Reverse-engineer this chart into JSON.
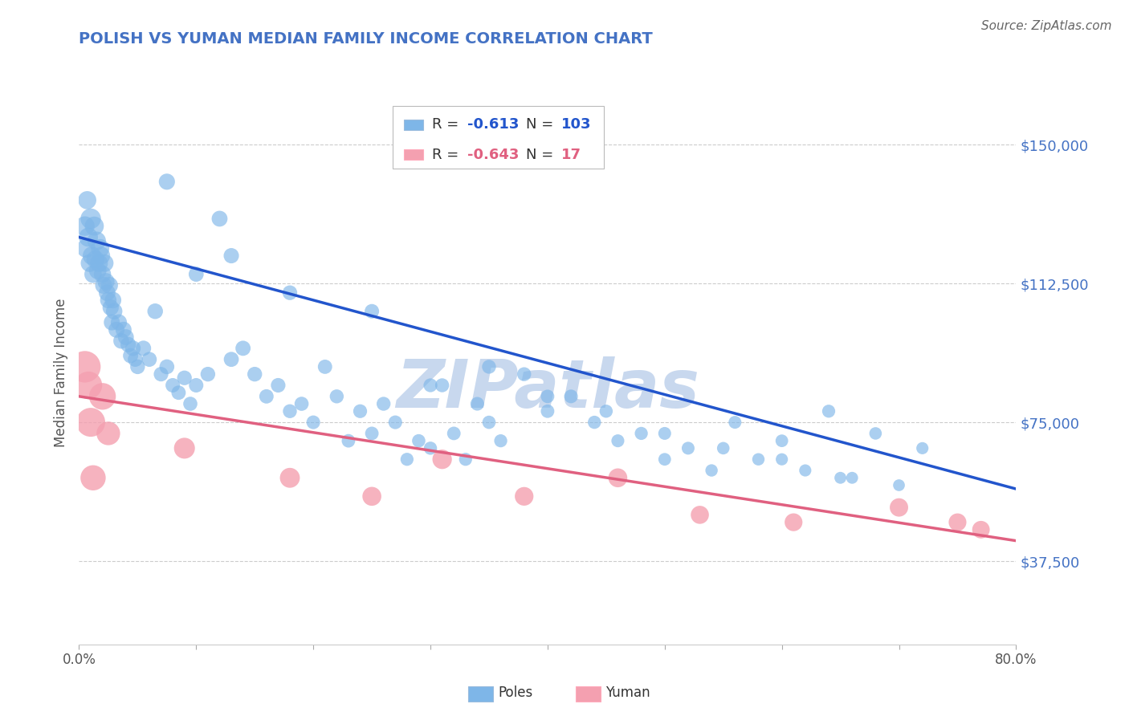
{
  "title": "POLISH VS YUMAN MEDIAN FAMILY INCOME CORRELATION CHART",
  "source": "Source: ZipAtlas.com",
  "ylabel": "Median Family Income",
  "xlim": [
    0.0,
    0.8
  ],
  "ylim": [
    15000,
    162000
  ],
  "yticks": [
    37500,
    75000,
    112500,
    150000
  ],
  "ytick_labels": [
    "$37,500",
    "$75,000",
    "$112,500",
    "$150,000"
  ],
  "xticks": [
    0.0,
    0.1,
    0.2,
    0.3,
    0.4,
    0.5,
    0.6,
    0.7,
    0.8
  ],
  "poles_color": "#7EB6E8",
  "yuman_color": "#F4A0B0",
  "line_blue": "#2255CC",
  "line_pink": "#E06080",
  "legend_R_poles": "-0.613",
  "legend_N_poles": "103",
  "legend_R_yuman": "-0.643",
  "legend_N_yuman": "17",
  "watermark": "ZIPatlas",
  "watermark_color": "#C8D8EE",
  "title_color": "#4472C4",
  "right_axis_color": "#4472C4",
  "grid_color": "#CCCCCC",
  "background_color": "#FFFFFF",
  "poles_line_x0": 0.0,
  "poles_line_y0": 125000,
  "poles_line_x1": 0.8,
  "poles_line_y1": 57000,
  "yuman_line_x0": 0.0,
  "yuman_line_y0": 82000,
  "yuman_line_x1": 0.8,
  "yuman_line_y1": 43000,
  "poles_x": [
    0.005,
    0.006,
    0.007,
    0.008,
    0.009,
    0.01,
    0.011,
    0.012,
    0.013,
    0.014,
    0.015,
    0.016,
    0.017,
    0.018,
    0.019,
    0.02,
    0.021,
    0.022,
    0.023,
    0.024,
    0.025,
    0.026,
    0.027,
    0.028,
    0.029,
    0.03,
    0.032,
    0.034,
    0.036,
    0.038,
    0.04,
    0.042,
    0.044,
    0.046,
    0.048,
    0.05,
    0.055,
    0.06,
    0.065,
    0.07,
    0.075,
    0.08,
    0.085,
    0.09,
    0.095,
    0.1,
    0.11,
    0.12,
    0.13,
    0.14,
    0.15,
    0.16,
    0.17,
    0.18,
    0.19,
    0.2,
    0.21,
    0.22,
    0.23,
    0.24,
    0.25,
    0.26,
    0.27,
    0.28,
    0.29,
    0.3,
    0.31,
    0.32,
    0.33,
    0.34,
    0.35,
    0.36,
    0.38,
    0.4,
    0.42,
    0.44,
    0.46,
    0.48,
    0.5,
    0.52,
    0.54,
    0.56,
    0.58,
    0.6,
    0.62,
    0.64,
    0.66,
    0.68,
    0.7,
    0.72,
    0.075,
    0.1,
    0.13,
    0.18,
    0.25,
    0.3,
    0.35,
    0.4,
    0.45,
    0.5,
    0.55,
    0.6,
    0.65
  ],
  "poles_y": [
    128000,
    122000,
    135000,
    125000,
    118000,
    130000,
    120000,
    115000,
    128000,
    119000,
    124000,
    116000,
    118000,
    122000,
    120000,
    115000,
    112000,
    118000,
    113000,
    110000,
    108000,
    112000,
    106000,
    102000,
    108000,
    105000,
    100000,
    102000,
    97000,
    100000,
    98000,
    96000,
    93000,
    95000,
    92000,
    90000,
    95000,
    92000,
    105000,
    88000,
    90000,
    85000,
    83000,
    87000,
    80000,
    85000,
    88000,
    130000,
    92000,
    95000,
    88000,
    82000,
    85000,
    78000,
    80000,
    75000,
    90000,
    82000,
    70000,
    78000,
    72000,
    80000,
    75000,
    65000,
    70000,
    68000,
    85000,
    72000,
    65000,
    80000,
    75000,
    70000,
    88000,
    78000,
    82000,
    75000,
    70000,
    72000,
    65000,
    68000,
    62000,
    75000,
    65000,
    70000,
    62000,
    78000,
    60000,
    72000,
    58000,
    68000,
    140000,
    115000,
    120000,
    110000,
    105000,
    85000,
    90000,
    82000,
    78000,
    72000,
    68000,
    65000,
    60000
  ],
  "poles_sizes": [
    220,
    200,
    190,
    210,
    180,
    240,
    195,
    175,
    210,
    185,
    200,
    175,
    185,
    195,
    180,
    170,
    165,
    175,
    168,
    160,
    155,
    165,
    152,
    148,
    158,
    155,
    148,
    150,
    142,
    148,
    145,
    138,
    132,
    138,
    128,
    125,
    135,
    128,
    140,
    122,
    128,
    120,
    118,
    124,
    115,
    120,
    125,
    145,
    130,
    132,
    125,
    118,
    122,
    112,
    115,
    108,
    118,
    112,
    105,
    110,
    105,
    112,
    108,
    98,
    102,
    100,
    112,
    105,
    98,
    108,
    102,
    98,
    112,
    105,
    108,
    100,
    96,
    98,
    92,
    95,
    88,
    95,
    88,
    92,
    85,
    98,
    82,
    90,
    80,
    85,
    150,
    130,
    135,
    125,
    120,
    110,
    112,
    105,
    100,
    95,
    90,
    85,
    82
  ],
  "yuman_x": [
    0.005,
    0.008,
    0.01,
    0.012,
    0.02,
    0.025,
    0.09,
    0.18,
    0.25,
    0.31,
    0.38,
    0.46,
    0.53,
    0.61,
    0.7,
    0.75,
    0.77
  ],
  "yuman_y": [
    90000,
    85000,
    75000,
    60000,
    82000,
    72000,
    68000,
    60000,
    55000,
    65000,
    55000,
    60000,
    50000,
    48000,
    52000,
    48000,
    46000
  ],
  "yuman_sizes": [
    500,
    380,
    420,
    320,
    360,
    280,
    220,
    200,
    180,
    190,
    175,
    180,
    165,
    160,
    170,
    158,
    155
  ]
}
